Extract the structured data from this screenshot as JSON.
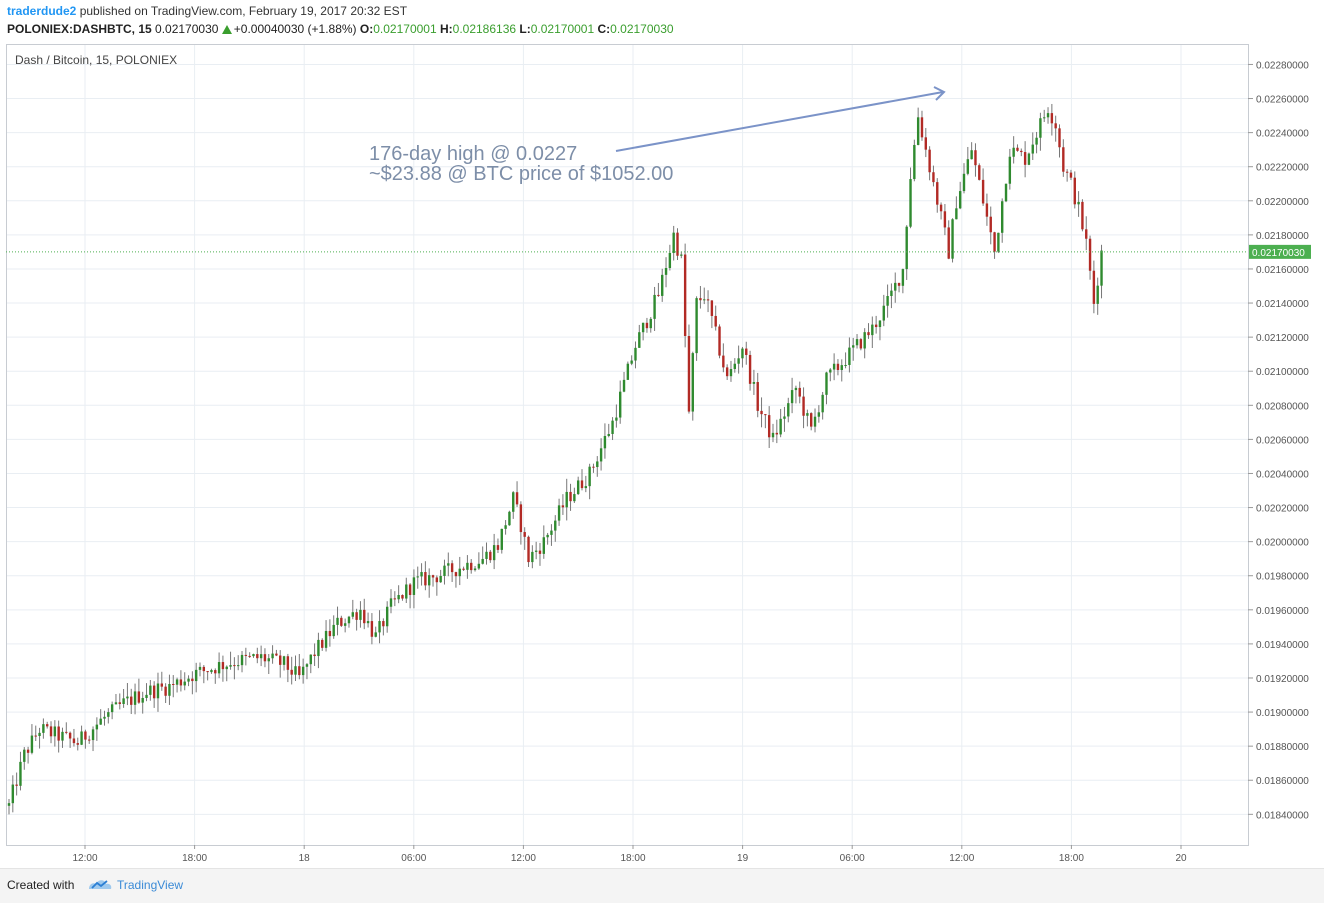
{
  "header": {
    "publisher": "traderdude2",
    "published_text": "published on TradingView.com, February 19, 2017 20:32 EST",
    "symbol": "POLONIEX:DASHBTC, 15",
    "last": "0.02170030",
    "change": "+0.00040030 (+1.88%)",
    "o_label": "O:",
    "o_value": "0.02170001",
    "h_label": "H:",
    "h_value": "0.02186136",
    "l_label": "L:",
    "l_value": "0.02170001",
    "c_label": "C:",
    "c_value": "0.02170030"
  },
  "chart_title": "Dash / Bitcoin, 15, POLONIEX",
  "annotation": {
    "line1": "176-day high @ 0.0227",
    "line2": "~$23.88 @ BTC price of $1052.00"
  },
  "price_label": "0.02170030",
  "footer": {
    "created_with": "Created with",
    "brand": "TradingView"
  },
  "colors": {
    "up": "#2f8a2f",
    "down": "#b22a25",
    "wick": "#777777",
    "grid": "#e9eef3",
    "price_line": "#4caf50",
    "annotation": "#7d8ea8",
    "arrow": "#7b93c8"
  },
  "chart_data": {
    "type": "candlestick",
    "title": "Dash / Bitcoin, 15, POLONIEX",
    "ylim": [
      0.01822,
      0.02292
    ],
    "y_ticks": [
      "0.01840000",
      "0.01860000",
      "0.01880000",
      "0.01900000",
      "0.01920000",
      "0.01940000",
      "0.01960000",
      "0.01980000",
      "0.02000000",
      "0.02020000",
      "0.02040000",
      "0.02060000",
      "0.02080000",
      "0.02100000",
      "0.02120000",
      "0.02140000",
      "0.02160000",
      "0.02180000",
      "0.02200000",
      "0.02220000",
      "0.02240000",
      "0.02260000",
      "0.02280000"
    ],
    "x_ticks": [
      "12:00",
      "18:00",
      "18",
      "06:00",
      "12:00",
      "18:00",
      "19",
      "06:00",
      "12:00",
      "18:00",
      "20"
    ],
    "last_price": 0.0217003,
    "waypoints": [
      [
        0,
        0.01845
      ],
      [
        4,
        0.01875
      ],
      [
        8,
        0.0189
      ],
      [
        18,
        0.01882
      ],
      [
        24,
        0.01895
      ],
      [
        30,
        0.01905
      ],
      [
        36,
        0.01912
      ],
      [
        42,
        0.01915
      ],
      [
        48,
        0.01922
      ],
      [
        56,
        0.01928
      ],
      [
        60,
        0.0193
      ],
      [
        66,
        0.01932
      ],
      [
        72,
        0.01928
      ],
      [
        76,
        0.0192
      ],
      [
        80,
        0.01935
      ],
      [
        86,
        0.01952
      ],
      [
        92,
        0.0196
      ],
      [
        96,
        0.01944
      ],
      [
        100,
        0.01962
      ],
      [
        106,
        0.01976
      ],
      [
        112,
        0.0198
      ],
      [
        118,
        0.01985
      ],
      [
        124,
        0.0199
      ],
      [
        128,
        0.01998
      ],
      [
        132,
        0.02025
      ],
      [
        134,
        0.0201
      ],
      [
        136,
        0.0199
      ],
      [
        140,
        0.02
      ],
      [
        146,
        0.02025
      ],
      [
        152,
        0.0204
      ],
      [
        158,
        0.0207
      ],
      [
        164,
        0.02115
      ],
      [
        170,
        0.02145
      ],
      [
        174,
        0.0218
      ],
      [
        176,
        0.02165
      ],
      [
        178,
        0.02075
      ],
      [
        180,
        0.0214
      ],
      [
        182,
        0.02145
      ],
      [
        184,
        0.0213
      ],
      [
        188,
        0.02095
      ],
      [
        192,
        0.02115
      ],
      [
        196,
        0.0208
      ],
      [
        200,
        0.0206
      ],
      [
        206,
        0.0209
      ],
      [
        210,
        0.02065
      ],
      [
        214,
        0.02095
      ],
      [
        218,
        0.02105
      ],
      [
        222,
        0.02115
      ],
      [
        226,
        0.02125
      ],
      [
        230,
        0.0214
      ],
      [
        234,
        0.0216
      ],
      [
        236,
        0.02215
      ],
      [
        238,
        0.0225
      ],
      [
        240,
        0.0223
      ],
      [
        242,
        0.0221
      ],
      [
        244,
        0.0219
      ],
      [
        246,
        0.0217
      ],
      [
        248,
        0.022
      ],
      [
        252,
        0.0223
      ],
      [
        256,
        0.0219
      ],
      [
        258,
        0.0217
      ],
      [
        262,
        0.0223
      ],
      [
        266,
        0.02225
      ],
      [
        268,
        0.02235
      ],
      [
        272,
        0.02255
      ],
      [
        274,
        0.02245
      ],
      [
        276,
        0.0222
      ],
      [
        278,
        0.0221
      ],
      [
        280,
        0.02195
      ],
      [
        282,
        0.02175
      ],
      [
        284,
        0.0214
      ],
      [
        286,
        0.0217
      ]
    ]
  }
}
